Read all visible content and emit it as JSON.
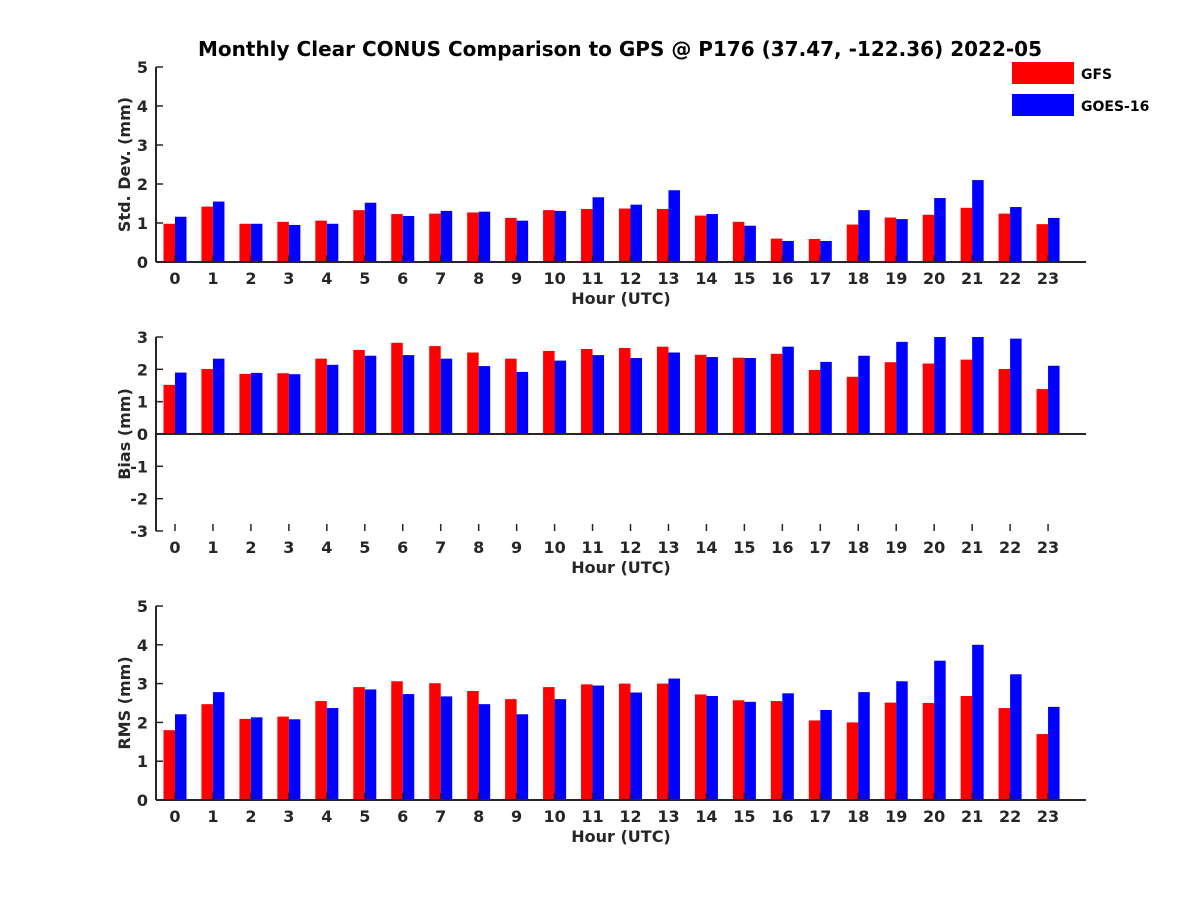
{
  "figure": {
    "title": "Monthly Clear CONUS Comparison to GPS @ P176 (37.47, -122.36) 2022-05"
  },
  "legend": {
    "placement": "top-right",
    "entries": [
      {
        "name": "GFS",
        "color": "#ff0000"
      },
      {
        "name": "GOES-16",
        "color": "#0000ff"
      }
    ]
  },
  "chart_data": [
    {
      "type": "bar",
      "xlabel": "Hour (UTC)",
      "ylabel": "Std. Dev. (mm)",
      "ylim": [
        0,
        5
      ],
      "yticks": [
        0,
        1,
        2,
        3,
        4,
        5
      ],
      "categories": [
        "0",
        "1",
        "2",
        "3",
        "4",
        "5",
        "6",
        "7",
        "8",
        "9",
        "10",
        "11",
        "12",
        "13",
        "14",
        "15",
        "16",
        "17",
        "18",
        "19",
        "20",
        "21",
        "22",
        "23"
      ],
      "series": [
        {
          "name": "GFS",
          "color": "#ff0000",
          "values": [
            0.98,
            1.42,
            0.98,
            1.03,
            1.06,
            1.33,
            1.23,
            1.24,
            1.27,
            1.13,
            1.33,
            1.36,
            1.37,
            1.36,
            1.19,
            1.03,
            0.6,
            0.59,
            0.96,
            1.14,
            1.21,
            1.39,
            1.24,
            0.97
          ]
        },
        {
          "name": "GOES-16",
          "color": "#0000ff",
          "values": [
            1.16,
            1.55,
            0.98,
            0.95,
            0.98,
            1.52,
            1.18,
            1.31,
            1.29,
            1.06,
            1.31,
            1.66,
            1.47,
            1.84,
            1.23,
            0.93,
            0.54,
            0.54,
            1.33,
            1.1,
            1.64,
            2.1,
            1.41,
            1.13
          ]
        }
      ]
    },
    {
      "type": "bar",
      "xlabel": "Hour (UTC)",
      "ylabel": "Bias (mm)",
      "ylim": [
        -3,
        3
      ],
      "yticks": [
        -3,
        -2,
        -1,
        0,
        1,
        2,
        3
      ],
      "categories": [
        "0",
        "1",
        "2",
        "3",
        "4",
        "5",
        "6",
        "7",
        "8",
        "9",
        "10",
        "11",
        "12",
        "13",
        "14",
        "15",
        "16",
        "17",
        "18",
        "19",
        "20",
        "21",
        "22",
        "23"
      ],
      "series": [
        {
          "name": "GFS",
          "color": "#ff0000",
          "values": [
            1.52,
            2.01,
            1.86,
            1.88,
            2.33,
            2.6,
            2.82,
            2.72,
            2.52,
            2.33,
            2.57,
            2.63,
            2.66,
            2.7,
            2.45,
            2.36,
            2.48,
            1.98,
            1.77,
            2.22,
            2.18,
            2.3,
            2.01,
            1.39
          ]
        },
        {
          "name": "GOES-16",
          "color": "#0000ff",
          "values": [
            1.9,
            2.33,
            1.89,
            1.85,
            2.14,
            2.42,
            2.44,
            2.33,
            2.1,
            1.92,
            2.27,
            2.44,
            2.35,
            2.52,
            2.38,
            2.35,
            2.7,
            2.23,
            2.42,
            2.85,
            3.0,
            3.0,
            2.95,
            2.11
          ]
        }
      ]
    },
    {
      "type": "bar",
      "xlabel": "Hour (UTC)",
      "ylabel": "RMS (mm)",
      "ylim": [
        0,
        5
      ],
      "yticks": [
        0,
        1,
        2,
        3,
        4,
        5
      ],
      "categories": [
        "0",
        "1",
        "2",
        "3",
        "4",
        "5",
        "6",
        "7",
        "8",
        "9",
        "10",
        "11",
        "12",
        "13",
        "14",
        "15",
        "16",
        "17",
        "18",
        "19",
        "20",
        "21",
        "22",
        "23"
      ],
      "series": [
        {
          "name": "GFS",
          "color": "#ff0000",
          "values": [
            1.8,
            2.47,
            2.09,
            2.15,
            2.55,
            2.91,
            3.06,
            3.01,
            2.81,
            2.6,
            2.91,
            2.98,
            3.0,
            3.0,
            2.72,
            2.57,
            2.55,
            2.05,
            2.0,
            2.51,
            2.5,
            2.68,
            2.37,
            1.7
          ]
        },
        {
          "name": "GOES-16",
          "color": "#0000ff",
          "values": [
            2.21,
            2.78,
            2.13,
            2.08,
            2.37,
            2.85,
            2.73,
            2.67,
            2.47,
            2.21,
            2.6,
            2.95,
            2.77,
            3.13,
            2.68,
            2.53,
            2.75,
            2.32,
            2.78,
            3.06,
            3.59,
            4.0,
            3.24,
            2.4
          ]
        }
      ]
    }
  ]
}
